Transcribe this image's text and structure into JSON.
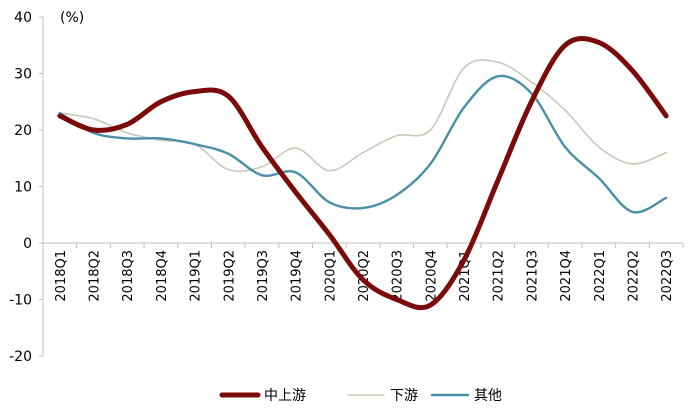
{
  "chart_data": {
    "type": "line",
    "unit_label": "(%)",
    "x": [
      "2018Q1",
      "2018Q2",
      "2018Q3",
      "2018Q4",
      "2019Q1",
      "2019Q2",
      "2019Q3",
      "2019Q4",
      "2020Q1",
      "2020Q2",
      "2020Q3",
      "2020Q4",
      "2021Q1",
      "2021Q2",
      "2021Q3",
      "2021Q4",
      "2022Q1",
      "2022Q2",
      "2022Q3"
    ],
    "ylim": [
      -20,
      40
    ],
    "yticks": [
      40,
      30,
      20,
      10,
      0,
      -10,
      -20
    ],
    "grid": false,
    "legend_position": "bottom",
    "series": [
      {
        "name": "中上游",
        "color": "#7b0a0a",
        "values": [
          22.5,
          20.0,
          21.0,
          25.0,
          26.8,
          26.0,
          17.0,
          9.0,
          1.5,
          -6.5,
          -10.0,
          -11.0,
          -3.0,
          11.0,
          25.0,
          35.0,
          35.5,
          30.5,
          22.5
        ]
      },
      {
        "name": "下游",
        "color": "#c9c9bb",
        "values": [
          23.0,
          22.0,
          19.5,
          18.2,
          17.5,
          13.0,
          13.5,
          16.8,
          12.8,
          16.0,
          19.0,
          20.0,
          31.0,
          32.0,
          28.5,
          23.5,
          17.0,
          14.0,
          16.0
        ]
      },
      {
        "name": "其他",
        "color": "#4a8fa8",
        "values": [
          23.0,
          19.5,
          18.5,
          18.5,
          17.5,
          15.8,
          12.0,
          12.5,
          7.2,
          6.2,
          8.5,
          14.0,
          24.0,
          29.5,
          26.5,
          17.0,
          11.5,
          5.5,
          8.0
        ]
      }
    ]
  }
}
